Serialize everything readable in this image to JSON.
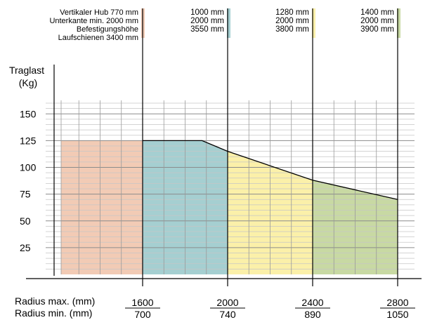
{
  "chart_data": {
    "type": "area",
    "ylabel_lines": [
      "Traglast",
      "(Kg)"
    ],
    "y_ticks": [
      25,
      50,
      75,
      100,
      125,
      150
    ],
    "ylim": [
      0,
      160
    ],
    "x_row_labels": [
      "Radius max. (mm)",
      "Radius min. (mm)"
    ],
    "x_ticks": [
      {
        "max": "1600",
        "min": "700"
      },
      {
        "max": "2000",
        "min": "740"
      },
      {
        "max": "2400",
        "min": "890"
      },
      {
        "max": "2800",
        "min": "1050"
      }
    ],
    "xlim": [
      1200,
      2800
    ],
    "grid": true,
    "segments": [
      {
        "color": "#f2cbb5",
        "lines": [
          "Vertikaler Hub 770 mm",
          "Unterkante min. 2000 mm",
          "Befestigungshöhe",
          "Laufschienen 3400 mm"
        ],
        "points": [
          [
            1200,
            125
          ],
          [
            1600,
            125
          ]
        ]
      },
      {
        "color": "#a5cfd1",
        "lines": [
          "1000 mm",
          "2000 mm",
          "3550 mm"
        ],
        "points": [
          [
            1600,
            125
          ],
          [
            1880,
            125
          ],
          [
            2000,
            115
          ]
        ]
      },
      {
        "color": "#fbf0a9",
        "lines": [
          "1280 mm",
          "2000 mm",
          "3800 mm"
        ],
        "points": [
          [
            2000,
            115
          ],
          [
            2400,
            88
          ]
        ]
      },
      {
        "color": "#c8d9a3",
        "lines": [
          "1400 mm",
          "2000 mm",
          "3900 mm"
        ],
        "points": [
          [
            2400,
            88
          ],
          [
            2800,
            70
          ]
        ]
      }
    ]
  }
}
